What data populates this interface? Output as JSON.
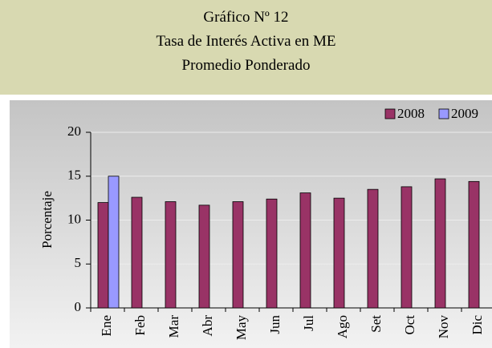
{
  "header": {
    "lines": [
      "Gráfico  Nº 12",
      "Tasa de Interés Activa en ME",
      "Promedio Ponderado"
    ]
  },
  "chart_data": {
    "type": "bar",
    "y_label": "Porcentaje",
    "categories": [
      "Ene",
      "Feb",
      "Mar",
      "Abr",
      "May",
      "Jun",
      "Jul",
      "Ago",
      "Set",
      "Oct",
      "Nov",
      "Dic"
    ],
    "series": [
      {
        "name": "2008",
        "color": "#993366",
        "values": [
          12,
          12.6,
          12.1,
          11.7,
          12.1,
          12.4,
          13.1,
          12.5,
          13.5,
          13.8,
          14.7,
          14.4
        ]
      },
      {
        "name": "2009",
        "color": "#9999ff",
        "values": [
          15,
          null,
          null,
          null,
          null,
          null,
          null,
          null,
          null,
          null,
          null,
          null
        ]
      }
    ],
    "ylim": [
      0,
      20
    ],
    "yticks": [
      0,
      5,
      10,
      15,
      20
    ],
    "grid": true,
    "legend": "top-right"
  }
}
